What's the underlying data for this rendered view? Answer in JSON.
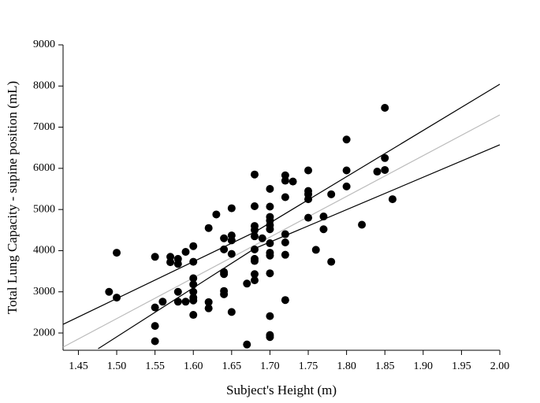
{
  "chart_data": {
    "type": "scatter",
    "xlabel": "Subject's Height (m)",
    "ylabel": "Total Lung Capacity - supine position (mL)",
    "xlim": [
      1.43,
      2.0
    ],
    "ylim": [
      1580,
      9000
    ],
    "xticks": [
      1.45,
      {
        "value": 1.5,
        "label": "1.50"
      },
      1.55,
      {
        "value": 1.6,
        "label": "1.60"
      },
      1.65,
      {
        "value": 1.7,
        "label": "1.70"
      },
      1.75,
      {
        "value": 1.8,
        "label": "1.80"
      },
      1.85,
      {
        "value": 1.9,
        "label": "1.90"
      },
      1.95,
      {
        "value": 2.0,
        "label": "2.00"
      }
    ],
    "yticks": [
      2000,
      3000,
      4000,
      5000,
      6000,
      7000,
      8000,
      9000
    ],
    "color": "#000000",
    "x": [
      1.49,
      1.5,
      1.5,
      1.55,
      1.55,
      1.55,
      1.55,
      1.56,
      1.57,
      1.57,
      1.58,
      1.58,
      1.58,
      1.58,
      1.59,
      1.59,
      1.6,
      1.6,
      1.6,
      1.6,
      1.6,
      1.6,
      1.6,
      1.6,
      1.62,
      1.62,
      1.62,
      1.63,
      1.64,
      1.64,
      1.64,
      1.64,
      1.64,
      1.64,
      1.65,
      1.65,
      1.65,
      1.65,
      1.65,
      1.67,
      1.67,
      1.68,
      1.68,
      1.68,
      1.68,
      1.68,
      1.68,
      1.68,
      1.68,
      1.68,
      1.68,
      1.69,
      1.7,
      1.7,
      1.7,
      1.7,
      1.7,
      1.7,
      1.7,
      1.7,
      1.7,
      1.7,
      1.7,
      1.7,
      1.7,
      1.72,
      1.72,
      1.72,
      1.72,
      1.72,
      1.72,
      1.72,
      1.73,
      1.75,
      1.75,
      1.75,
      1.75,
      1.75,
      1.76,
      1.77,
      1.77,
      1.78,
      1.78,
      1.8,
      1.8,
      1.8,
      1.82,
      1.84,
      1.85,
      1.85,
      1.85,
      1.86
    ],
    "values": [
      3000,
      2860,
      3950,
      3850,
      2620,
      2170,
      1800,
      2760,
      3850,
      3720,
      3800,
      3680,
      3000,
      2760,
      3970,
      2760,
      4110,
      3730,
      3330,
      3180,
      3000,
      2860,
      2790,
      2440,
      4550,
      2750,
      2600,
      4880,
      4300,
      4030,
      3480,
      3430,
      3020,
      2940,
      5030,
      4370,
      4250,
      3920,
      2510,
      3200,
      1720,
      5850,
      5080,
      4600,
      4500,
      4350,
      4030,
      3800,
      3750,
      3430,
      3280,
      4300,
      5500,
      5070,
      4820,
      4730,
      4620,
      4520,
      4180,
      3950,
      3880,
      3450,
      2410,
      1950,
      1900,
      5830,
      5700,
      5300,
      4400,
      4200,
      3900,
      2800,
      5680,
      5950,
      5450,
      5370,
      5250,
      4800,
      4020,
      4830,
      4520,
      5370,
      3730,
      6700,
      5950,
      5560,
      4630,
      5920,
      7470,
      6250,
      5960,
      5250
    ],
    "lines": [
      {
        "color": "#000000",
        "x": [
          1.43,
          1.68,
          2.0
        ],
        "y": [
          2210,
          4450,
          8044
        ]
      },
      {
        "color": "#bbbbbb",
        "x": [
          1.43,
          2.0
        ],
        "y": [
          1656,
          7298
        ]
      },
      {
        "color": "#000000",
        "x": [
          1.4758,
          1.68,
          2.0
        ],
        "y": [
          1618,
          4050,
          6572
        ]
      }
    ]
  }
}
